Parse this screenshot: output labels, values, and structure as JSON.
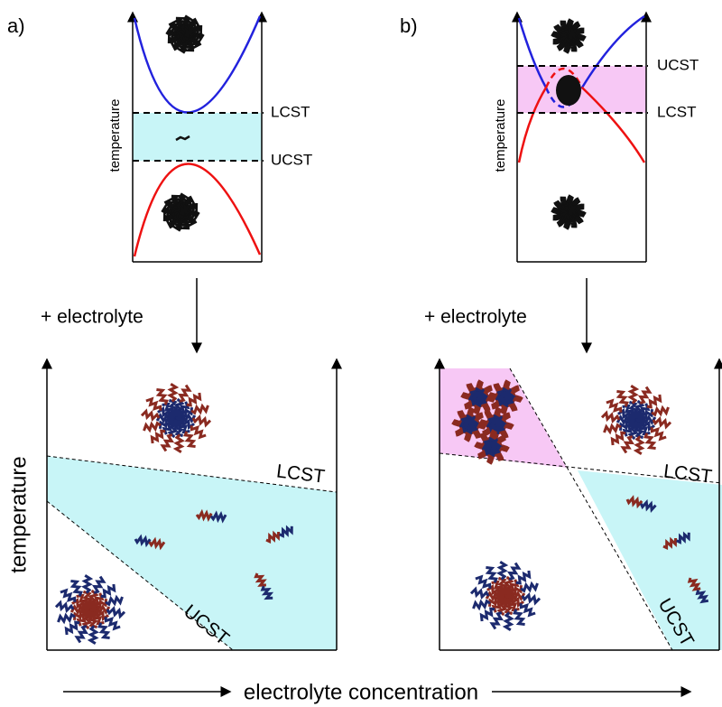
{
  "panels": [
    {
      "label": "a)",
      "top": {
        "y_label": "temperature",
        "lines": [
          "LCST",
          "UCST"
        ]
      },
      "arrow_label": "+ electrolyte",
      "bottom": {
        "lines": [
          "LCST",
          "UCST"
        ]
      }
    },
    {
      "label": "b)",
      "top": {
        "y_label": "temperature",
        "lines": [
          "UCST",
          "LCST"
        ]
      },
      "arrow_label": "+ electrolyte",
      "bottom": {
        "lines": [
          "LCST",
          "UCST"
        ]
      }
    }
  ],
  "y_label": "temperature",
  "x_label": "electrolyte concentration"
}
